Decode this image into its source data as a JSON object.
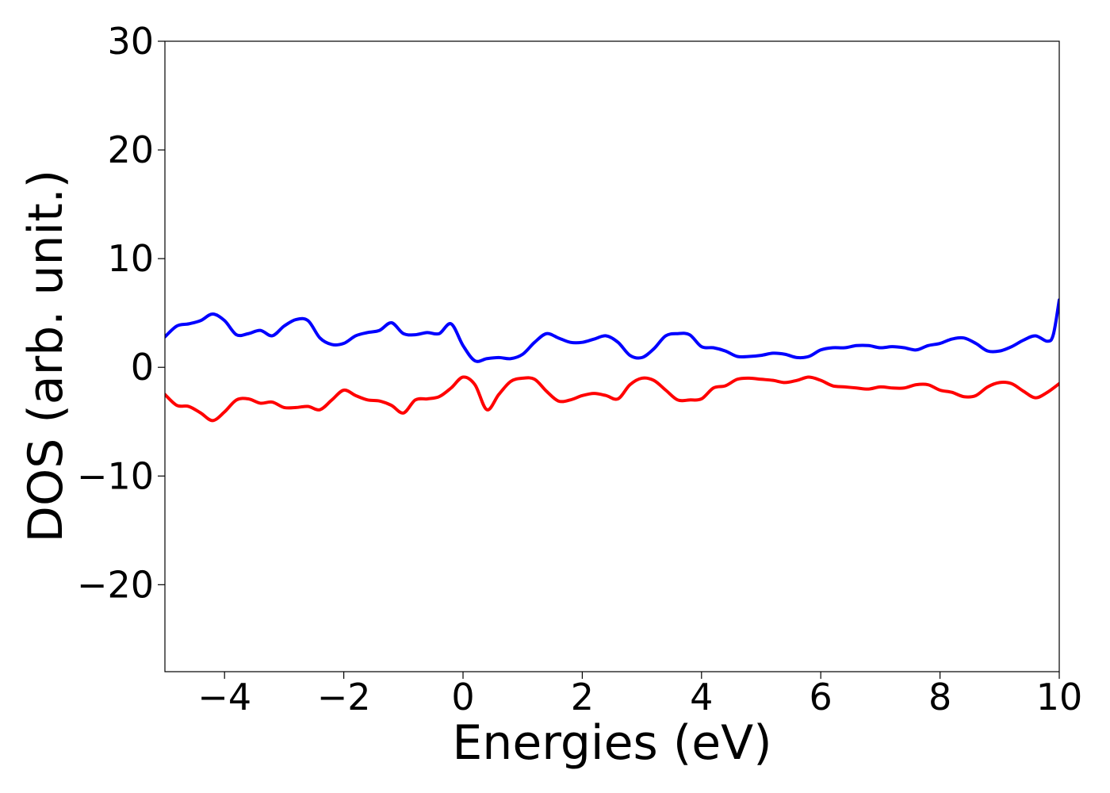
{
  "chart_data": {
    "type": "line",
    "xlabel": "Energies (eV)",
    "ylabel": "DOS (arb. unit.)",
    "xlim": [
      -5,
      10
    ],
    "ylim": [
      -28,
      30
    ],
    "xticks": [
      -4,
      -2,
      0,
      2,
      4,
      6,
      8,
      10
    ],
    "yticks": [
      -20,
      -10,
      0,
      10,
      20,
      30
    ],
    "xtick_labels": [
      "−4",
      "−2",
      "0",
      "2",
      "4",
      "6",
      "8",
      "10"
    ],
    "ytick_labels": [
      "−20",
      "−10",
      "0",
      "10",
      "20",
      "30"
    ],
    "grid": false,
    "series": [
      {
        "color": "#0000ff",
        "x": [
          -5.0,
          -4.8,
          -4.6,
          -4.4,
          -4.2,
          -4.0,
          -3.8,
          -3.6,
          -3.4,
          -3.2,
          -3.0,
          -2.8,
          -2.6,
          -2.4,
          -2.2,
          -2.0,
          -1.8,
          -1.6,
          -1.4,
          -1.2,
          -1.0,
          -0.8,
          -0.6,
          -0.4,
          -0.2,
          0.0,
          0.2,
          0.4,
          0.6,
          0.8,
          1.0,
          1.2,
          1.4,
          1.6,
          1.8,
          2.0,
          2.2,
          2.4,
          2.6,
          2.8,
          3.0,
          3.2,
          3.4,
          3.6,
          3.8,
          4.0,
          4.2,
          4.4,
          4.6,
          4.8,
          5.0,
          5.2,
          5.4,
          5.6,
          5.8,
          6.0,
          6.2,
          6.4,
          6.6,
          6.8,
          7.0,
          7.2,
          7.4,
          7.6,
          7.8,
          8.0,
          8.2,
          8.4,
          8.6,
          8.8,
          9.0,
          9.2,
          9.4,
          9.6,
          9.8,
          9.9,
          10.0
        ],
        "y": [
          2.8,
          3.8,
          4.0,
          4.3,
          4.9,
          4.3,
          3.0,
          3.1,
          3.4,
          2.9,
          3.8,
          4.4,
          4.3,
          2.7,
          2.1,
          2.2,
          2.9,
          3.2,
          3.4,
          4.1,
          3.1,
          3.0,
          3.2,
          3.1,
          4.0,
          2.0,
          0.6,
          0.8,
          0.9,
          0.8,
          1.2,
          2.3,
          3.1,
          2.7,
          2.3,
          2.3,
          2.6,
          2.9,
          2.3,
          1.1,
          0.9,
          1.7,
          2.9,
          3.1,
          3.0,
          1.9,
          1.8,
          1.5,
          1.0,
          1.0,
          1.1,
          1.3,
          1.2,
          0.9,
          1.0,
          1.6,
          1.8,
          1.8,
          2.0,
          2.0,
          1.8,
          1.9,
          1.8,
          1.6,
          2.0,
          2.2,
          2.6,
          2.7,
          2.2,
          1.5,
          1.5,
          1.9,
          2.5,
          2.9,
          2.4,
          3.0,
          6.2
        ]
      },
      {
        "color": "#ff0000",
        "x": [
          -5.0,
          -4.8,
          -4.6,
          -4.4,
          -4.2,
          -4.0,
          -3.8,
          -3.6,
          -3.4,
          -3.2,
          -3.0,
          -2.8,
          -2.6,
          -2.4,
          -2.2,
          -2.0,
          -1.8,
          -1.6,
          -1.4,
          -1.2,
          -1.0,
          -0.8,
          -0.6,
          -0.4,
          -0.2,
          0.0,
          0.2,
          0.4,
          0.6,
          0.8,
          1.0,
          1.2,
          1.4,
          1.6,
          1.8,
          2.0,
          2.2,
          2.4,
          2.6,
          2.8,
          3.0,
          3.2,
          3.4,
          3.6,
          3.8,
          4.0,
          4.2,
          4.4,
          4.6,
          4.8,
          5.0,
          5.2,
          5.4,
          5.6,
          5.8,
          6.0,
          6.2,
          6.4,
          6.6,
          6.8,
          7.0,
          7.2,
          7.4,
          7.6,
          7.8,
          8.0,
          8.2,
          8.4,
          8.6,
          8.8,
          9.0,
          9.2,
          9.4,
          9.6,
          9.8,
          10.0
        ],
        "y": [
          -2.5,
          -3.5,
          -3.6,
          -4.2,
          -4.9,
          -4.1,
          -3.0,
          -2.9,
          -3.3,
          -3.2,
          -3.7,
          -3.7,
          -3.6,
          -3.9,
          -3.0,
          -2.1,
          -2.6,
          -3.0,
          -3.1,
          -3.5,
          -4.2,
          -3.0,
          -2.9,
          -2.7,
          -1.9,
          -0.9,
          -1.6,
          -3.9,
          -2.5,
          -1.3,
          -1.0,
          -1.1,
          -2.2,
          -3.1,
          -3.0,
          -2.6,
          -2.4,
          -2.6,
          -2.9,
          -1.6,
          -1.0,
          -1.2,
          -2.1,
          -3.0,
          -3.0,
          -2.9,
          -1.9,
          -1.7,
          -1.1,
          -1.0,
          -1.1,
          -1.2,
          -1.4,
          -1.2,
          -0.9,
          -1.2,
          -1.7,
          -1.8,
          -1.9,
          -2.0,
          -1.8,
          -1.9,
          -1.9,
          -1.6,
          -1.6,
          -2.1,
          -2.3,
          -2.7,
          -2.6,
          -1.8,
          -1.4,
          -1.5,
          -2.2,
          -2.8,
          -2.3,
          -1.5
        ]
      }
    ]
  }
}
